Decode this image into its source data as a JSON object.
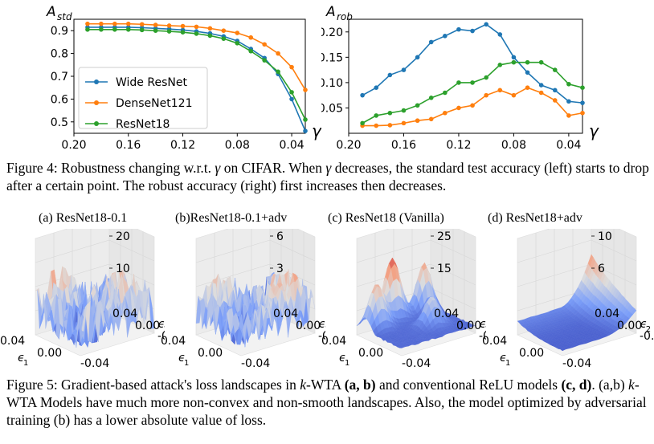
{
  "figure4": {
    "caption_prefix": "Figure 4: Robustness changing w.r.t. ",
    "caption_gamma": "γ",
    "caption_mid": " on CIFAR. When ",
    "caption_gamma2": "γ",
    "caption_rest": " decreases, the standard test accuracy (left) starts to drop after a certain point. The robust accuracy (right) first increases then decreases."
  },
  "figure5": {
    "caption_a": "Figure 5: Gradient-based attack's loss landscapes in ",
    "caption_k": "k",
    "caption_b": "-WTA ",
    "caption_bold1": "(a, b)",
    "caption_c": " and conventional ReLU models ",
    "caption_bold2": "(c, d)",
    "caption_d": ". (a,b) ",
    "caption_k2": "k",
    "caption_e": "-WTA Models have much more non-convex and non-smooth landscapes. Also, the model optimized by adversarial training (b) has a lower absolute value of loss.",
    "subtitles": [
      "(a) ResNet18-0.1",
      "(b)ResNet18-0.1+adv",
      "(c) ResNet18 (Vanilla)",
      "(d) ResNet18+adv"
    ],
    "z_ticks": [
      [
        "20",
        "10"
      ],
      [
        "6",
        "3"
      ],
      [
        "25",
        "15"
      ],
      [
        "10",
        "6"
      ]
    ],
    "e1_ticks": [
      "0.04",
      "0.00"
    ],
    "e2_ticks": [
      "0.04",
      "0.00",
      "-0.04"
    ],
    "e1_last": "-0.04",
    "e1_label": "ϵ",
    "e1_sub": "1",
    "e2_label": "ϵ",
    "e2_sub": "2"
  },
  "chart_data": [
    {
      "type": "line",
      "ylabel": "A_std",
      "ylabel_main": "A",
      "ylabel_sub": "std",
      "xlabel": "γ",
      "xlim": [
        0.2,
        0.03
      ],
      "ylim": [
        0.45,
        0.95
      ],
      "x_ticks": [
        "0.20",
        "0.16",
        "0.12",
        "0.08",
        "0.04"
      ],
      "y_ticks": [
        "0.5",
        "0.6",
        "0.7",
        "0.8",
        "0.9"
      ],
      "legend_position": "center-left",
      "x": [
        0.19,
        0.18,
        0.17,
        0.16,
        0.15,
        0.14,
        0.13,
        0.12,
        0.11,
        0.1,
        0.09,
        0.08,
        0.07,
        0.06,
        0.05,
        0.04,
        0.03
      ],
      "series": [
        {
          "name": "Wide ResNet",
          "color": "#1f77b4",
          "values": [
            0.915,
            0.915,
            0.915,
            0.915,
            0.913,
            0.91,
            0.907,
            0.903,
            0.897,
            0.888,
            0.875,
            0.855,
            0.82,
            0.78,
            0.71,
            0.6,
            0.46
          ]
        },
        {
          "name": "DenseNet121",
          "color": "#ff7f0e",
          "values": [
            0.93,
            0.93,
            0.93,
            0.93,
            0.928,
            0.925,
            0.922,
            0.92,
            0.917,
            0.91,
            0.9,
            0.89,
            0.87,
            0.84,
            0.8,
            0.74,
            0.64
          ]
        },
        {
          "name": "ResNet18",
          "color": "#2ca02c",
          "values": [
            0.905,
            0.905,
            0.905,
            0.905,
            0.903,
            0.9,
            0.897,
            0.893,
            0.887,
            0.878,
            0.865,
            0.845,
            0.81,
            0.77,
            0.72,
            0.63,
            0.51
          ]
        }
      ]
    },
    {
      "type": "line",
      "ylabel": "A_rob",
      "ylabel_main": "A",
      "ylabel_sub": "rob",
      "xlabel": "γ",
      "xlim": [
        0.2,
        0.03
      ],
      "ylim": [
        0.0,
        0.225
      ],
      "x_ticks": [
        "0.20",
        "0.16",
        "0.12",
        "0.08",
        "0.04"
      ],
      "y_ticks": [
        "0.05",
        "0.10",
        "0.15",
        "0.20"
      ],
      "x": [
        0.19,
        0.18,
        0.17,
        0.16,
        0.15,
        0.14,
        0.13,
        0.12,
        0.11,
        0.1,
        0.09,
        0.08,
        0.07,
        0.06,
        0.05,
        0.04,
        0.03
      ],
      "series": [
        {
          "name": "Wide ResNet",
          "color": "#1f77b4",
          "values": [
            0.075,
            0.09,
            0.115,
            0.125,
            0.15,
            0.18,
            0.192,
            0.205,
            0.202,
            0.215,
            0.195,
            0.15,
            0.12,
            0.095,
            0.085,
            0.063,
            0.06
          ]
        },
        {
          "name": "DenseNet121",
          "color": "#ff7f0e",
          "values": [
            0.015,
            0.015,
            0.016,
            0.02,
            0.025,
            0.028,
            0.04,
            0.05,
            0.055,
            0.075,
            0.085,
            0.075,
            0.09,
            0.08,
            0.065,
            0.035,
            0.04
          ]
        },
        {
          "name": "ResNet18",
          "color": "#2ca02c",
          "values": [
            0.02,
            0.035,
            0.04,
            0.045,
            0.055,
            0.07,
            0.08,
            0.1,
            0.1,
            0.11,
            0.135,
            0.14,
            0.14,
            0.14,
            0.125,
            0.097,
            0.09
          ]
        }
      ]
    }
  ],
  "surfaces": [
    {
      "type": "noisy",
      "peak": 0.55,
      "cmap": "coolwarm"
    },
    {
      "type": "noisy",
      "peak": 0.5,
      "cmap": "coolwarm"
    },
    {
      "type": "peaks",
      "peak": 0.9,
      "cmap": "coolwarm"
    },
    {
      "type": "bowl",
      "peak": 0.6,
      "cmap": "coolwarm"
    }
  ]
}
